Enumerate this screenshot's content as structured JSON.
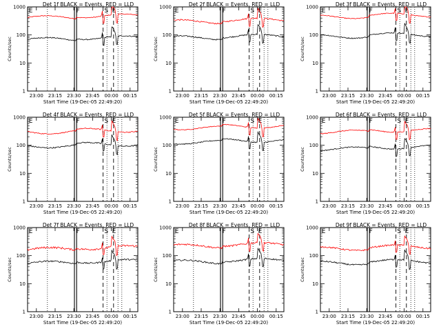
{
  "chart_data": [
    {
      "type": "line",
      "title": "Det 1f BLACK = Events, RED = LLD",
      "xlabel": "Start Time (19-Dec-05 22:49:20)",
      "ylabel": "Counts/sec",
      "yscale": "log",
      "ylim": [
        1,
        1000
      ],
      "xticks": [
        "23:00",
        "23:15",
        "23:30",
        "23:45",
        "00:00",
        "00:15"
      ],
      "yticks": [
        "1",
        "10",
        "100",
        "1000"
      ],
      "markers": [
        "E",
        "F",
        "S",
        "E"
      ],
      "series": [
        {
          "color": "#ff0000",
          "base": 420,
          "noise": 0.03
        },
        {
          "color": "#000000",
          "base": 70,
          "noise": 0.04
        }
      ]
    },
    {
      "type": "line",
      "title": "Det 2f BLACK = Events, RED = LLD",
      "xlabel": "Start Time (19-Dec-05 22:49:20)",
      "ylabel": "Counts/sec",
      "yscale": "log",
      "ylim": [
        1,
        1000
      ],
      "xticks": [
        "23:00",
        "23:15",
        "23:30",
        "23:45",
        "00:00",
        "00:15"
      ],
      "yticks": [
        "1",
        "10",
        "100",
        "1000"
      ],
      "markers": [
        "E",
        "F",
        "S",
        "E"
      ],
      "series": [
        {
          "color": "#ff0000",
          "base": 300,
          "noise": 0.05
        },
        {
          "color": "#000000",
          "base": 80,
          "noise": 0.05
        }
      ]
    },
    {
      "type": "line",
      "title": "Det 3f BLACK = Events, RED = LLD",
      "xlabel": "Start Time (19-Dec-05 22:49:20)",
      "ylabel": "Counts/sec",
      "yscale": "log",
      "ylim": [
        1,
        1000
      ],
      "xticks": [
        "23:00",
        "23:15",
        "23:30",
        "23:45",
        "00:00",
        "00:15"
      ],
      "yticks": [
        "1",
        "10",
        "100",
        "1000"
      ],
      "markers": [
        "E",
        "F",
        "S",
        "E"
      ],
      "series": [
        {
          "color": "#ff0000",
          "base": 450,
          "noise": 0.03
        },
        {
          "color": "#000000",
          "base": 90,
          "noise": 0.04
        }
      ]
    },
    {
      "type": "line",
      "title": "Det 4f BLACK = Events, RED = LLD",
      "xlabel": "Start Time (19-Dec-05 22:49:20)",
      "ylabel": "Counts/sec",
      "yscale": "log",
      "ylim": [
        1,
        1000
      ],
      "xticks": [
        "23:00",
        "23:15",
        "23:30",
        "23:45",
        "00:00",
        "00:15"
      ],
      "yticks": [
        "1",
        "10",
        "100",
        "1000"
      ],
      "markers": [
        "E",
        "F",
        "S",
        "E"
      ],
      "series": [
        {
          "color": "#ff0000",
          "base": 300,
          "noise": 0.04
        },
        {
          "color": "#000000",
          "base": 95,
          "noise": 0.05
        }
      ]
    },
    {
      "type": "line",
      "title": "Det 5f BLACK = Events, RED = LLD",
      "xlabel": "Start Time (19-Dec-05 22:49:20)",
      "ylabel": "Counts/sec",
      "yscale": "log",
      "ylim": [
        1,
        1000
      ],
      "xticks": [
        "23:00",
        "23:15",
        "23:30",
        "23:45",
        "00:00",
        "00:15"
      ],
      "yticks": [
        "1",
        "10",
        "100",
        "1000"
      ],
      "markers": [
        "E",
        "F",
        "S",
        "E"
      ],
      "series": [
        {
          "color": "#ff0000",
          "base": 420,
          "noise": 0.03
        },
        {
          "color": "#000000",
          "base": 130,
          "noise": 0.04
        }
      ]
    },
    {
      "type": "line",
      "title": "Det 6f BLACK = Events, RED = LLD",
      "xlabel": "Start Time (19-Dec-05 22:49:20)",
      "ylabel": "Counts/sec",
      "yscale": "log",
      "ylim": [
        1,
        1000
      ],
      "xticks": [
        "23:00",
        "23:15",
        "23:30",
        "23:45",
        "00:00",
        "00:15"
      ],
      "yticks": [
        "1",
        "10",
        "100",
        "1000"
      ],
      "markers": [
        "E",
        "F",
        "S",
        "E"
      ],
      "series": [
        {
          "color": "#ff0000",
          "base": 300,
          "noise": 0.04
        },
        {
          "color": "#000000",
          "base": 75,
          "noise": 0.04
        }
      ]
    },
    {
      "type": "line",
      "title": "Det 7f BLACK = Events, RED = LLD",
      "xlabel": "Start Time (19-Dec-05 22:49:20)",
      "ylabel": "Counts/sec",
      "yscale": "log",
      "ylim": [
        1,
        1000
      ],
      "xticks": [
        "23:00",
        "23:15",
        "23:30",
        "23:45",
        "00:00",
        "00:15"
      ],
      "yticks": [
        "1",
        "10",
        "100",
        "1000"
      ],
      "markers": [
        "E",
        "F",
        "S",
        "E"
      ],
      "series": [
        {
          "color": "#ff0000",
          "base": 170,
          "noise": 0.08
        },
        {
          "color": "#000000",
          "base": 55,
          "noise": 0.06
        }
      ]
    },
    {
      "type": "line",
      "title": "Det 8f BLACK = Events, RED = LLD",
      "xlabel": "Start Time (19-Dec-05 22:49:20)",
      "ylabel": "Counts/sec",
      "yscale": "log",
      "ylim": [
        1,
        1000
      ],
      "xticks": [
        "23:00",
        "23:15",
        "23:30",
        "23:45",
        "00:00",
        "00:15"
      ],
      "yticks": [
        "1",
        "10",
        "100",
        "1000"
      ],
      "markers": [
        "E",
        "F",
        "S",
        "E"
      ],
      "series": [
        {
          "color": "#ff0000",
          "base": 220,
          "noise": 0.07
        },
        {
          "color": "#000000",
          "base": 60,
          "noise": 0.06
        }
      ]
    },
    {
      "type": "line",
      "title": "Det 9f BLACK = Events, RED = LLD",
      "xlabel": "Start Time (19-Dec-05 22:49:20)",
      "ylabel": "Counts/sec",
      "yscale": "log",
      "ylim": [
        1,
        1000
      ],
      "xticks": [
        "23:00",
        "23:15",
        "23:30",
        "23:45",
        "00:00",
        "00:15"
      ],
      "yticks": [
        "1",
        "10",
        "100",
        "1000"
      ],
      "markers": [
        "E",
        "F",
        "S",
        "E"
      ],
      "series": [
        {
          "color": "#ff0000",
          "base": 180,
          "noise": 0.06
        },
        {
          "color": "#000000",
          "base": 55,
          "noise": 0.06
        }
      ]
    }
  ]
}
